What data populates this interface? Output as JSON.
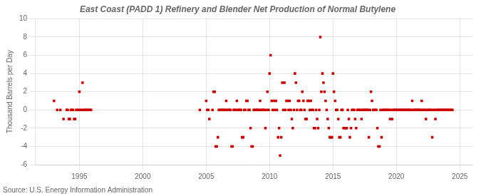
{
  "chart_data": {
    "type": "scatter",
    "title": "East Coast (PADD 1) Refinery and Blender Net Production of Normal Butylene",
    "ylabel": "Thousand Barrels per Day",
    "annotation": "Source: U.S. Energy Information Administration",
    "color": "#cc0000",
    "marker": "square",
    "grid": true,
    "xlim": [
      1991.5,
      2026.0
    ],
    "xticks": [
      1995,
      2000,
      2005,
      2010,
      2015,
      2020,
      2025
    ],
    "ylim": [
      -6,
      10
    ],
    "yticks": [
      -6,
      -4,
      -2,
      0,
      2,
      4,
      6,
      8,
      10
    ],
    "x": [
      1993.0,
      1993.25,
      1993.5,
      1993.75,
      1994.0,
      1994.08,
      1994.17,
      1994.25,
      1994.33,
      1994.42,
      1994.5,
      1994.58,
      1994.67,
      1994.75,
      1994.83,
      1994.92,
      1995.0,
      1995.08,
      1995.17,
      1995.25,
      1995.33,
      1995.42,
      1995.5,
      1995.58,
      1995.67,
      1995.75,
      1995.83,
      1995.92,
      2004.5,
      2005.0,
      2005.08,
      2005.17,
      2005.25,
      2005.5,
      2005.58,
      2005.67,
      2005.75,
      2005.83,
      2005.92,
      2006.0,
      2006.08,
      2006.17,
      2006.25,
      2006.33,
      2006.42,
      2006.5,
      2006.58,
      2006.67,
      2006.75,
      2006.83,
      2006.92,
      2007.0,
      2007.08,
      2007.17,
      2007.25,
      2007.33,
      2007.42,
      2007.5,
      2007.58,
      2007.67,
      2007.75,
      2007.83,
      2007.92,
      2008.0,
      2008.08,
      2008.17,
      2008.25,
      2008.33,
      2008.42,
      2008.5,
      2008.58,
      2008.67,
      2008.75,
      2008.83,
      2008.92,
      2009.0,
      2009.08,
      2009.17,
      2009.25,
      2009.33,
      2009.42,
      2009.5,
      2009.58,
      2009.67,
      2009.75,
      2009.83,
      2009.92,
      2010.0,
      2010.08,
      2010.17,
      2010.25,
      2010.33,
      2010.42,
      2010.5,
      2010.58,
      2010.67,
      2010.75,
      2010.83,
      2010.92,
      2011.0,
      2011.08,
      2011.17,
      2011.25,
      2011.33,
      2011.42,
      2011.5,
      2011.58,
      2011.67,
      2011.75,
      2011.83,
      2011.92,
      2012.0,
      2012.08,
      2012.17,
      2012.25,
      2012.33,
      2012.42,
      2012.5,
      2012.58,
      2012.67,
      2012.75,
      2012.83,
      2012.92,
      2013.0,
      2013.08,
      2013.17,
      2013.25,
      2013.33,
      2013.42,
      2013.5,
      2013.58,
      2013.67,
      2013.75,
      2013.83,
      2013.92,
      2014.0,
      2014.08,
      2014.17,
      2014.25,
      2014.33,
      2014.42,
      2014.5,
      2014.58,
      2014.67,
      2014.75,
      2014.83,
      2014.92,
      2015.0,
      2015.08,
      2015.17,
      2015.25,
      2015.33,
      2015.42,
      2015.5,
      2015.58,
      2015.67,
      2015.75,
      2015.83,
      2015.92,
      2016.0,
      2016.08,
      2016.17,
      2016.25,
      2016.33,
      2016.42,
      2016.5,
      2016.58,
      2016.67,
      2016.75,
      2016.83,
      2016.92,
      2017.0,
      2017.08,
      2017.17,
      2017.25,
      2017.33,
      2017.42,
      2017.5,
      2017.58,
      2017.67,
      2017.75,
      2017.83,
      2017.92,
      2018.0,
      2018.08,
      2018.17,
      2018.25,
      2018.33,
      2018.42,
      2018.5,
      2018.58,
      2018.67,
      2018.75,
      2018.83,
      2018.92,
      2019.0,
      2019.08,
      2019.17,
      2019.25,
      2019.33,
      2019.42,
      2019.5,
      2019.58,
      2019.67,
      2019.75,
      2019.83,
      2019.92,
      2020.0,
      2020.08,
      2020.17,
      2020.25,
      2020.33,
      2020.42,
      2020.5,
      2020.58,
      2020.67,
      2020.75,
      2020.83,
      2020.92,
      2021.0,
      2021.08,
      2021.17,
      2021.25,
      2021.33,
      2021.42,
      2021.5,
      2021.58,
      2021.67,
      2021.75,
      2021.83,
      2021.92,
      2022.0,
      2022.08,
      2022.17,
      2022.25,
      2022.33,
      2022.42,
      2022.5,
      2022.58,
      2022.67,
      2022.75,
      2022.83,
      2022.92,
      2023.0,
      2023.08,
      2023.17,
      2023.25,
      2023.33,
      2023.42,
      2023.5,
      2023.58,
      2023.67,
      2023.75,
      2023.83,
      2023.92,
      2024.0,
      2024.08,
      2024.17,
      2024.25,
      2024.33,
      2024.42
    ],
    "values": [
      1.0,
      0.0,
      0.0,
      -1.0,
      0.0,
      0.0,
      -1.0,
      -1.0,
      0.0,
      0.0,
      0.0,
      -1.0,
      -1.0,
      0.0,
      0.0,
      0.0,
      2.0,
      0.0,
      0.0,
      3.0,
      0.0,
      0.0,
      0.0,
      0.0,
      0.0,
      0.0,
      0.0,
      0.0,
      0.0,
      1.0,
      0.0,
      0.0,
      -1.0,
      0.0,
      2.0,
      2.0,
      -4.0,
      -4.0,
      -3.0,
      0.0,
      0.0,
      0.0,
      0.0,
      0.0,
      0.0,
      0.0,
      1.0,
      0.0,
      0.0,
      0.0,
      0.0,
      -4.0,
      -4.0,
      0.0,
      0.0,
      0.0,
      1.0,
      0.0,
      0.0,
      0.0,
      0.0,
      -3.0,
      -3.0,
      0.0,
      0.0,
      1.0,
      1.0,
      0.0,
      0.0,
      -2.0,
      -4.0,
      -4.0,
      0.0,
      0.0,
      0.0,
      0.0,
      0.0,
      0.0,
      1.0,
      0.0,
      0.0,
      0.0,
      0.0,
      -2.0,
      0.0,
      2.0,
      0.0,
      4.0,
      6.0,
      1.0,
      0.0,
      1.0,
      0.0,
      1.0,
      0.0,
      -3.0,
      -2.0,
      -5.0,
      -3.0,
      3.0,
      0.0,
      3.0,
      0.0,
      1.0,
      1.0,
      0.0,
      1.0,
      0.0,
      -1.0,
      -2.0,
      0.0,
      4.0,
      3.0,
      0.0,
      1.0,
      1.0,
      0.0,
      0.0,
      2.0,
      1.0,
      0.0,
      -1.0,
      -1.0,
      1.0,
      1.0,
      0.0,
      1.0,
      0.0,
      0.0,
      -2.0,
      -2.0,
      0.0,
      -1.0,
      -2.0,
      0.0,
      8.0,
      2.0,
      4.0,
      3.0,
      2.0,
      1.0,
      0.0,
      -1.0,
      -2.0,
      -3.0,
      -3.0,
      -3.0,
      4.0,
      2.0,
      1.0,
      0.0,
      0.0,
      -1.0,
      -3.0,
      -3.0,
      0.0,
      0.0,
      -2.0,
      -2.0,
      -2.0,
      -2.0,
      0.0,
      -1.0,
      -3.0,
      -2.0,
      0.0,
      0.0,
      0.0,
      -1.0,
      -2.0,
      0.0,
      0.0,
      0.0,
      0.0,
      -1.0,
      0.0,
      0.0,
      0.0,
      0.0,
      0.0,
      0.0,
      -3.0,
      0.0,
      2.0,
      1.0,
      0.0,
      0.0,
      0.0,
      0.0,
      -2.0,
      -4.0,
      -4.0,
      0.0,
      -3.0,
      0.0,
      0.0,
      0.0,
      0.0,
      0.0,
      0.0,
      0.0,
      -1.0,
      0.0,
      -1.0,
      0.0,
      0.0,
      0.0,
      0.0,
      0.0,
      0.0,
      0.0,
      0.0,
      0.0,
      0.0,
      0.0,
      0.0,
      0.0,
      0.0,
      0.0,
      0.0,
      0.0,
      0.0,
      1.0,
      0.0,
      0.0,
      0.0,
      0.0,
      0.0,
      0.0,
      0.0,
      0.0,
      1.0,
      0.0,
      0.0,
      0.0,
      -1.0,
      0.0,
      0.0,
      0.0,
      0.0,
      0.0,
      -3.0,
      0.0,
      0.0,
      -1.0,
      0.0,
      0.0,
      0.0,
      0.0,
      0.0,
      0.0,
      0.0,
      0.0,
      0.0,
      0.0,
      0.0,
      0.0,
      0.0,
      0.0,
      0.0,
      0.0
    ]
  }
}
